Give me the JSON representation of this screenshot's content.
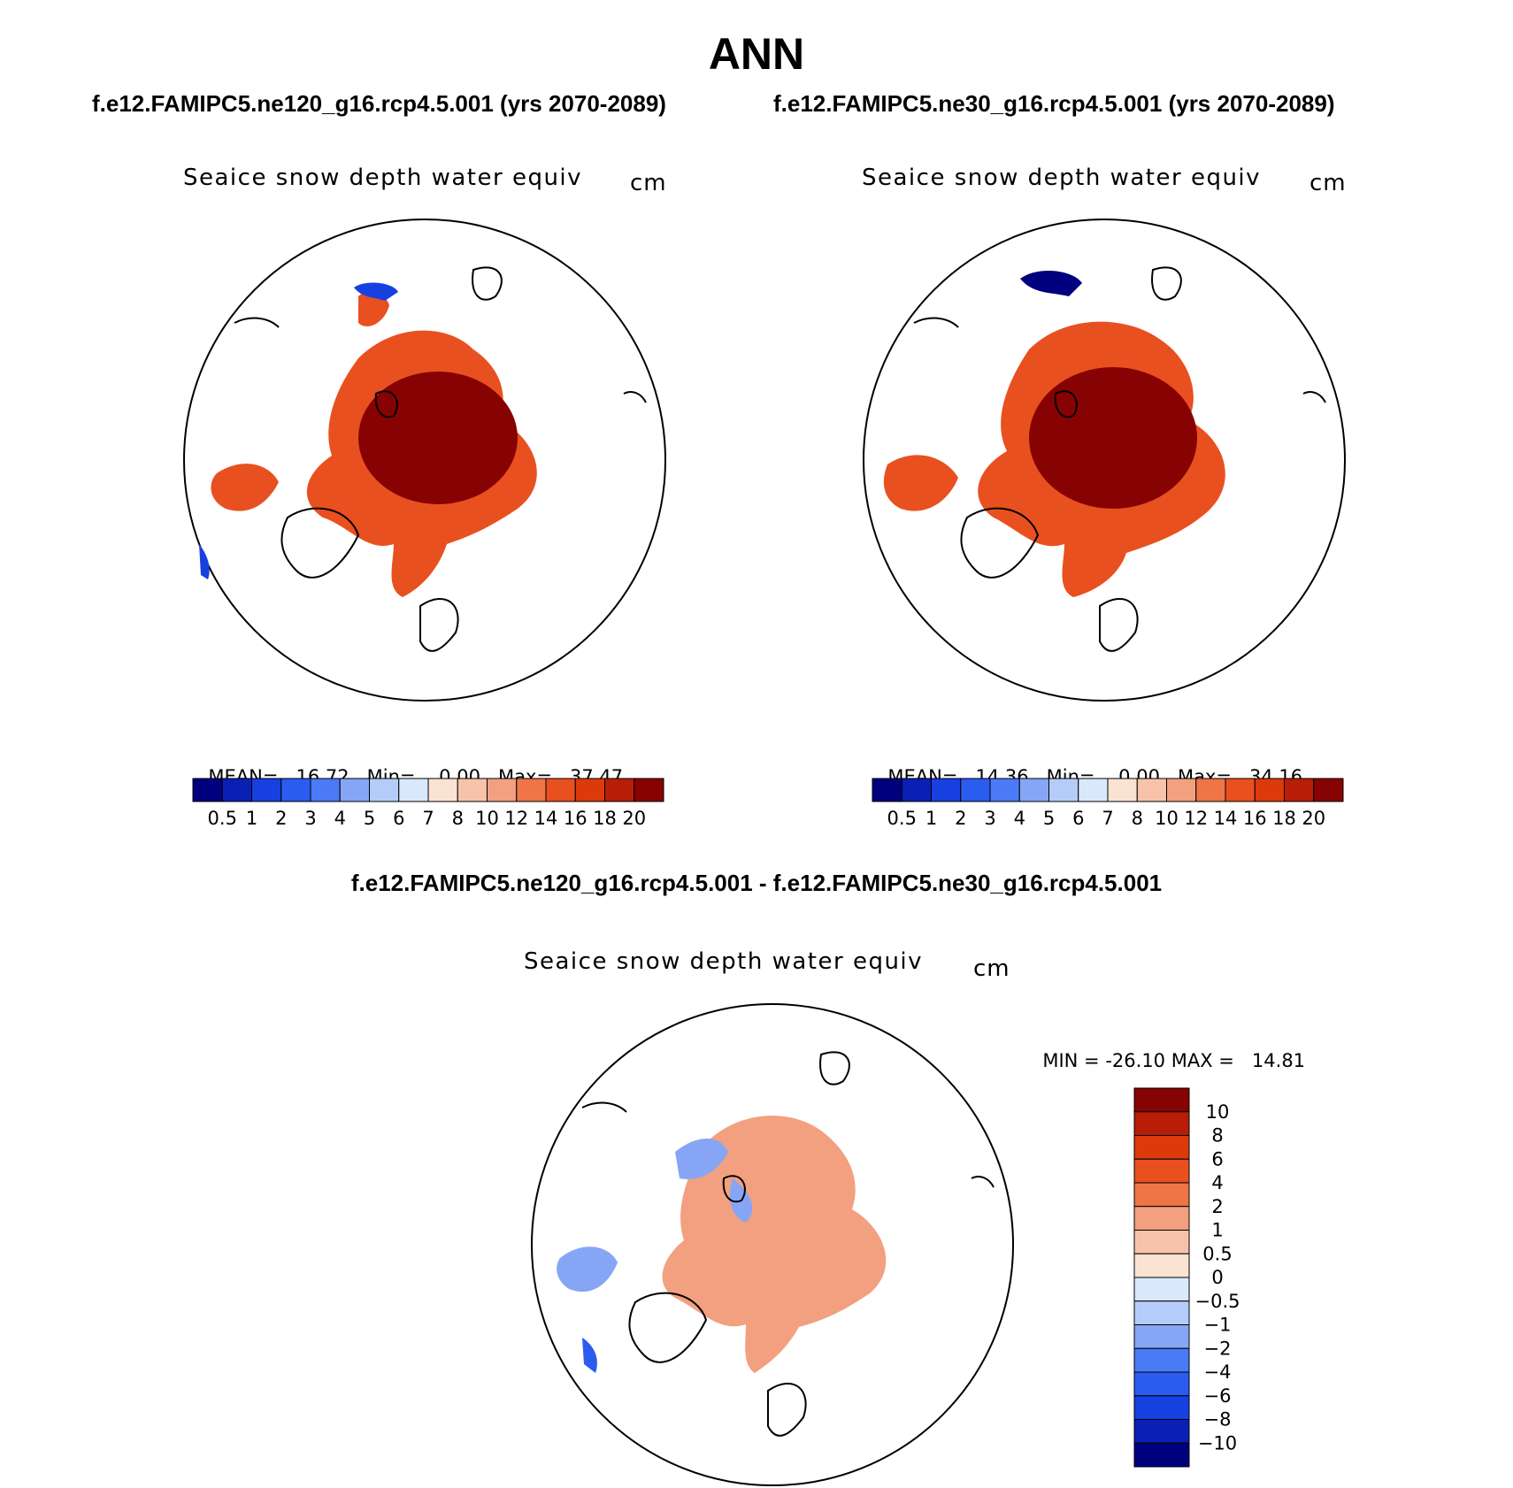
{
  "header": {
    "season": "ANN",
    "case_left": "f.e12.FAMIPC5.ne120_g16.rcp4.5.001 (yrs 2070-2089)",
    "case_right": "f.e12.FAMIPC5.ne30_g16.rcp4.5.001 (yrs 2070-2089)",
    "diff_title": "f.e12.FAMIPC5.ne120_g16.rcp4.5.001 - f.e12.FAMIPC5.ne30_g16.rcp4.5.001"
  },
  "panels": [
    {
      "id": "left",
      "variable": "Seaice snow depth water equiv",
      "units": "cm",
      "stats": {
        "mean_label": "MEAN=",
        "mean": "16.72",
        "min_label": "Min=",
        "min": "0.00",
        "max_label": "Max=",
        "max": "37.47"
      }
    },
    {
      "id": "right",
      "variable": "Seaice snow depth water equiv",
      "units": "cm",
      "stats": {
        "mean_label": "MEAN=",
        "mean": "14.36",
        "min_label": "Min=",
        "min": "0.00",
        "max_label": "Max=",
        "max": "34.16"
      }
    },
    {
      "id": "diff",
      "variable": "Seaice snow depth water equiv",
      "units": "cm",
      "stats": {
        "min_label": "MIN =",
        "min": "-26.10",
        "max_label": "MAX =",
        "max": "14.81"
      }
    }
  ],
  "colorbar_levels": {
    "field": [
      "0.5",
      "1",
      "2",
      "3",
      "4",
      "5",
      "6",
      "7",
      "8",
      "10",
      "12",
      "14",
      "16",
      "18",
      "20"
    ],
    "field_colors": [
      "#00007f",
      "#0a1fb4",
      "#1740e0",
      "#2a5cf0",
      "#4a7af5",
      "#86a6f5",
      "#b4cdf8",
      "#d9e8fa",
      "#fbe3d3",
      "#f6c3aa",
      "#f2a080",
      "#ef7447",
      "#e9501f",
      "#dd3a0c",
      "#b81e07",
      "#870202"
    ],
    "diff": [
      "10",
      "8",
      "6",
      "4",
      "2",
      "1",
      "0.5",
      "0",
      "−0.5",
      "−1",
      "−2",
      "−4",
      "−6",
      "−8",
      "−10"
    ],
    "diff_colors": [
      "#870202",
      "#b81e07",
      "#dd3a0c",
      "#e9501f",
      "#ef7447",
      "#f2a080",
      "#f6c3aa",
      "#fbe3d3",
      "#d9e8fa",
      "#b4cdf8",
      "#86a6f5",
      "#4a7af5",
      "#2a5cf0",
      "#1740e0",
      "#0a1fb4",
      "#00007f"
    ]
  }
}
